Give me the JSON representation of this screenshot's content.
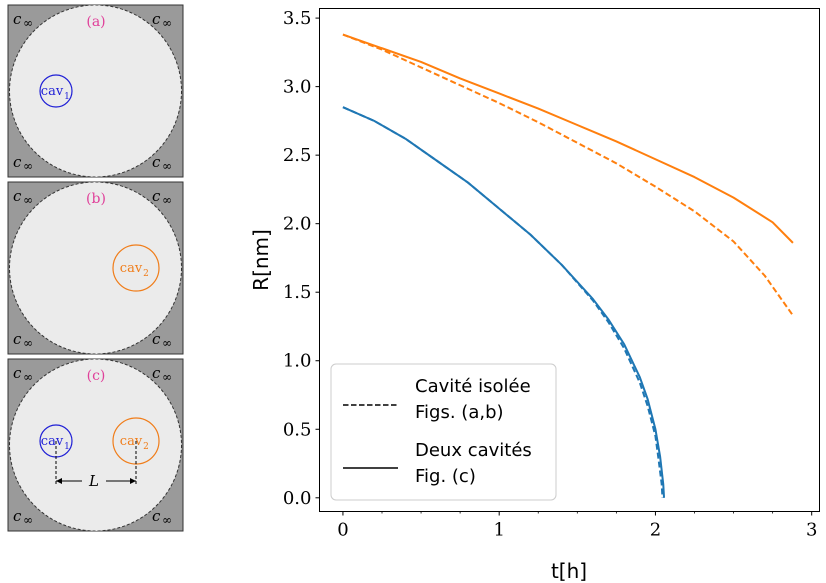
{
  "panels": [
    {
      "label": "(a)",
      "corner": "c",
      "corner_sub": "∞",
      "cavities": [
        {
          "name": "cav",
          "sub": "1",
          "color": "#1f1fd6"
        }
      ]
    },
    {
      "label": "(b)",
      "corner": "c",
      "corner_sub": "∞",
      "cavities": [
        {
          "name": "cav",
          "sub": "2",
          "color": "#f07d1a"
        }
      ]
    },
    {
      "label": "(c)",
      "corner": "c",
      "corner_sub": "∞",
      "cavities": [
        {
          "name": "cav",
          "sub": "1",
          "color": "#1f1fd6"
        },
        {
          "name": "cav",
          "sub": "2",
          "color": "#f07d1a"
        }
      ],
      "distance_label": "L"
    }
  ],
  "colors": {
    "panel_background": "#9a9a9a",
    "domain_fill": "#ebebeb",
    "label_color": "#e0409a",
    "blue": "#1f77b4",
    "orange": "#ff7f0e"
  },
  "chart_data": {
    "type": "line",
    "xlabel": "t[h]",
    "ylabel": "R[nm]",
    "xlim": [
      -0.15,
      3.05
    ],
    "ylim": [
      -0.1,
      3.57
    ],
    "xticks": [
      "0",
      "1",
      "2",
      "3"
    ],
    "yticks": [
      "0.0",
      "0.5",
      "1.0",
      "1.5",
      "2.0",
      "2.5",
      "3.0",
      "3.5"
    ],
    "legend": {
      "placement": "lower-left",
      "entries": [
        {
          "label_line1": "Cavité isolée",
          "label_line2": "Figs. (a,b)",
          "style": "dashed"
        },
        {
          "label_line1": "Deux cavités",
          "label_line2": "Fig. (c)",
          "style": "solid"
        }
      ]
    },
    "series": [
      {
        "color": "#1f77b4",
        "style": "solid",
        "points": [
          [
            0,
            2.85
          ],
          [
            0.2,
            2.75
          ],
          [
            0.4,
            2.62
          ],
          [
            0.6,
            2.46
          ],
          [
            0.8,
            2.3
          ],
          [
            1.0,
            2.11
          ],
          [
            1.2,
            1.92
          ],
          [
            1.4,
            1.7
          ],
          [
            1.6,
            1.45
          ],
          [
            1.7,
            1.3
          ],
          [
            1.8,
            1.12
          ],
          [
            1.9,
            0.88
          ],
          [
            1.95,
            0.72
          ],
          [
            2.0,
            0.5
          ],
          [
            2.03,
            0.3
          ],
          [
            2.05,
            0.1
          ],
          [
            2.055,
            0.0
          ]
        ]
      },
      {
        "color": "#1f77b4",
        "style": "dashed",
        "points": [
          [
            0,
            2.85
          ],
          [
            0.2,
            2.75
          ],
          [
            0.4,
            2.62
          ],
          [
            0.6,
            2.46
          ],
          [
            0.8,
            2.3
          ],
          [
            1.0,
            2.11
          ],
          [
            1.2,
            1.92
          ],
          [
            1.4,
            1.7
          ],
          [
            1.6,
            1.44
          ],
          [
            1.7,
            1.28
          ],
          [
            1.8,
            1.09
          ],
          [
            1.9,
            0.84
          ],
          [
            1.95,
            0.67
          ],
          [
            2.0,
            0.45
          ],
          [
            2.02,
            0.28
          ],
          [
            2.04,
            0.1
          ],
          [
            2.045,
            0.0
          ]
        ]
      },
      {
        "color": "#ff7f0e",
        "style": "solid",
        "points": [
          [
            0,
            3.38
          ],
          [
            0.25,
            3.28
          ],
          [
            0.5,
            3.18
          ],
          [
            0.75,
            3.06
          ],
          [
            1.0,
            2.95
          ],
          [
            1.25,
            2.84
          ],
          [
            1.5,
            2.72
          ],
          [
            1.75,
            2.6
          ],
          [
            2.0,
            2.47
          ],
          [
            2.25,
            2.34
          ],
          [
            2.5,
            2.19
          ],
          [
            2.75,
            2.01
          ],
          [
            2.88,
            1.86
          ]
        ]
      },
      {
        "color": "#ff7f0e",
        "style": "dashed",
        "points": [
          [
            0,
            3.38
          ],
          [
            0.25,
            3.27
          ],
          [
            0.5,
            3.14
          ],
          [
            0.75,
            3.01
          ],
          [
            1.0,
            2.88
          ],
          [
            1.25,
            2.74
          ],
          [
            1.5,
            2.59
          ],
          [
            1.75,
            2.44
          ],
          [
            2.0,
            2.27
          ],
          [
            2.25,
            2.09
          ],
          [
            2.5,
            1.87
          ],
          [
            2.7,
            1.62
          ],
          [
            2.88,
            1.33
          ]
        ]
      }
    ]
  }
}
